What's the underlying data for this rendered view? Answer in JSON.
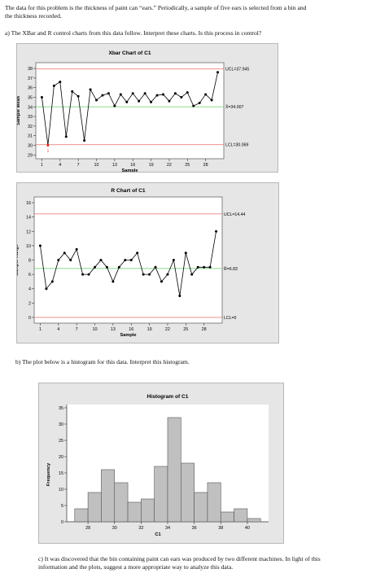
{
  "problem": {
    "intro_line1": "The data for this problem is the thickness of paint can “ears.” Periodically, a sample of five ears is selected from a bin and",
    "intro_line2": "the thickness recorded.",
    "part_a": "a) The XBar and R control charts from this data follow. Interpret these charts. Is this process in control?",
    "part_b": "b) The plot below is a histogram for this data. Interpret this histogram.",
    "part_c_line1": "c) It was discovered that the bin containing paint can ears was produced by two different machines. In light of this",
    "part_c_line2": "information and the plots, suggest a more appropriate way to analyze this data."
  },
  "colors": {
    "frame_bg": "#e6e6e6",
    "plot_bg": "#ffffff",
    "control_limit": "#f08080",
    "center_line": "#7bd67b",
    "data_line": "#000000",
    "out_of_control_point": "#e02020",
    "bar_fill": "#c0c0c0"
  },
  "chart_data": [
    {
      "type": "line",
      "title": "Xbar Chart of C1",
      "xlabel": "Sample",
      "ylabel": "Sample Mean",
      "x": [
        1,
        2,
        3,
        4,
        5,
        6,
        7,
        8,
        9,
        10,
        11,
        12,
        13,
        14,
        15,
        16,
        17,
        18,
        19,
        20,
        21,
        22,
        23,
        24,
        25,
        26,
        27,
        28,
        29,
        30
      ],
      "values": [
        35.0,
        30.0,
        36.2,
        36.6,
        30.9,
        35.6,
        35.1,
        30.5,
        35.8,
        34.7,
        35.2,
        35.4,
        34.1,
        35.3,
        34.5,
        35.4,
        34.6,
        35.4,
        34.5,
        35.2,
        35.3,
        34.6,
        35.4,
        35.0,
        35.5,
        34.1,
        34.4,
        35.3,
        34.7,
        37.6
      ],
      "ylim": [
        28.6,
        38.6
      ],
      "yticks": [
        29,
        30,
        31,
        32,
        33,
        34,
        35,
        36,
        37,
        38
      ],
      "xticks": [
        1,
        4,
        7,
        10,
        13,
        16,
        19,
        22,
        25,
        28
      ],
      "ucl": 37.945,
      "center": 34.007,
      "lcl": 30.069,
      "ucl_label": "UCL=37.945",
      "center_label": "X̄=34.007",
      "lcl_label": "LCL=30.069",
      "flagged": [
        {
          "x": 2,
          "label": "1"
        }
      ]
    },
    {
      "type": "line",
      "title": "R Chart of C1",
      "xlabel": "Sample",
      "ylabel": "Sample Range",
      "x": [
        1,
        2,
        3,
        4,
        5,
        6,
        7,
        8,
        9,
        10,
        11,
        12,
        13,
        14,
        15,
        16,
        17,
        18,
        19,
        20,
        21,
        22,
        23,
        24,
        25,
        26,
        27,
        28,
        29,
        30
      ],
      "values": [
        10.0,
        4.0,
        5.0,
        8.0,
        9.0,
        8.0,
        9.5,
        6.0,
        6.0,
        7.0,
        8.0,
        7.0,
        5.0,
        7.0,
        8.0,
        8.0,
        9.0,
        6.0,
        6.0,
        7.0,
        5.0,
        6.0,
        8.0,
        3.0,
        9.0,
        6.0,
        7.0,
        7.0,
        7.0,
        12.0
      ],
      "ylim": [
        -0.8,
        16.8
      ],
      "yticks": [
        0,
        2,
        4,
        6,
        8,
        10,
        12,
        14,
        16
      ],
      "xticks": [
        1,
        4,
        7,
        10,
        13,
        16,
        19,
        22,
        25,
        28
      ],
      "ucl": 14.44,
      "center": 6.83,
      "lcl": 0,
      "ucl_label": "UCL=14.44",
      "center_label": "R̄=6.83",
      "lcl_label": "LCL=0"
    },
    {
      "type": "bar",
      "title": "Histogram of C1",
      "xlabel": "C1",
      "ylabel": "Frequency",
      "bin_width": 1,
      "bin_starts": [
        27,
        28,
        29,
        30,
        31,
        32,
        33,
        34,
        35,
        36,
        37,
        38,
        39,
        40
      ],
      "values": [
        4,
        9,
        16,
        12,
        6,
        7,
        17,
        32,
        18,
        9,
        12,
        3,
        4,
        1
      ],
      "ylim": [
        0,
        36
      ],
      "yticks": [
        0,
        5,
        10,
        15,
        20,
        25,
        30,
        35
      ],
      "xticks": [
        28,
        30,
        32,
        34,
        36,
        38,
        40
      ],
      "xlim": [
        26.4,
        41.6
      ]
    }
  ]
}
